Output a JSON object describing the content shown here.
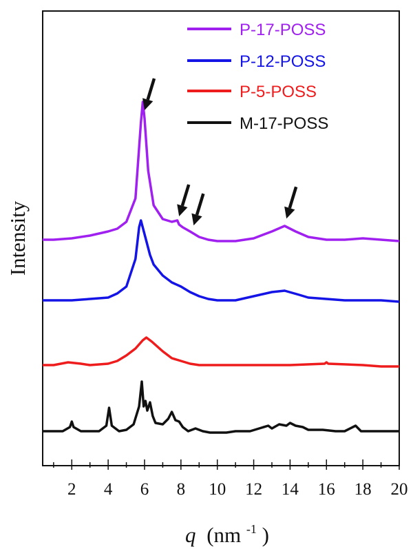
{
  "chart_data": {
    "type": "line",
    "title": "",
    "xlabel": "q",
    "xlabel_unit": "(nm",
    "xlabel_unit_exp": "-1",
    "xlabel_unit_close": ")",
    "ylabel": "Intensity",
    "xlim": [
      0.4,
      20
    ],
    "x_ticks": [
      "2",
      "4",
      "6",
      "8",
      "10",
      "12",
      "14",
      "16",
      "18",
      "20"
    ],
    "y_ticks_shown": false,
    "grid": false,
    "legend_position": "top-right",
    "series": [
      {
        "name": "P-17-POSS",
        "color": "#a020f0",
        "offset": 3,
        "points": [
          [
            0.4,
            0.0
          ],
          [
            1,
            0.0
          ],
          [
            2,
            0.01
          ],
          [
            3,
            0.03
          ],
          [
            4,
            0.06
          ],
          [
            4.5,
            0.08
          ],
          [
            5,
            0.13
          ],
          [
            5.5,
            0.3
          ],
          [
            5.8,
            0.85
          ],
          [
            5.9,
            1.0
          ],
          [
            6.0,
            0.88
          ],
          [
            6.2,
            0.5
          ],
          [
            6.5,
            0.25
          ],
          [
            7,
            0.15
          ],
          [
            7.5,
            0.13
          ],
          [
            7.8,
            0.14
          ],
          [
            7.9,
            0.11
          ],
          [
            8.1,
            0.09
          ],
          [
            8.5,
            0.06
          ],
          [
            9,
            0.02
          ],
          [
            9.5,
            0.0
          ],
          [
            10,
            -0.01
          ],
          [
            11,
            -0.01
          ],
          [
            12,
            0.01
          ],
          [
            13,
            0.06
          ],
          [
            13.7,
            0.1
          ],
          [
            14.3,
            0.06
          ],
          [
            15,
            0.02
          ],
          [
            16,
            0.0
          ],
          [
            17,
            0.0
          ],
          [
            18,
            0.01
          ],
          [
            19,
            0.0
          ],
          [
            20,
            -0.01
          ]
        ]
      },
      {
        "name": "P-12-POSS",
        "color": "#1414e6",
        "offset": 2,
        "points": [
          [
            0.4,
            0.0
          ],
          [
            1,
            0.0
          ],
          [
            2,
            0.0
          ],
          [
            3,
            0.01
          ],
          [
            4,
            0.02
          ],
          [
            4.5,
            0.05
          ],
          [
            5,
            0.1
          ],
          [
            5.5,
            0.3
          ],
          [
            5.7,
            0.53
          ],
          [
            5.8,
            0.58
          ],
          [
            6.0,
            0.48
          ],
          [
            6.3,
            0.33
          ],
          [
            6.5,
            0.26
          ],
          [
            7,
            0.18
          ],
          [
            7.5,
            0.13
          ],
          [
            8,
            0.1
          ],
          [
            8.5,
            0.06
          ],
          [
            9,
            0.03
          ],
          [
            9.5,
            0.01
          ],
          [
            10,
            0.0
          ],
          [
            11,
            0.0
          ],
          [
            12,
            0.03
          ],
          [
            13,
            0.06
          ],
          [
            13.7,
            0.07
          ],
          [
            14.5,
            0.04
          ],
          [
            15,
            0.02
          ],
          [
            16,
            0.01
          ],
          [
            17,
            0.0
          ],
          [
            18,
            0.0
          ],
          [
            19,
            0.0
          ],
          [
            20,
            -0.01
          ]
        ]
      },
      {
        "name": "P-5-POSS",
        "color": "#ee1c1c",
        "offset": 1,
        "points": [
          [
            0.4,
            0.0
          ],
          [
            1,
            0.0
          ],
          [
            1.8,
            0.02
          ],
          [
            2.5,
            0.01
          ],
          [
            3,
            0.0
          ],
          [
            4,
            0.01
          ],
          [
            4.5,
            0.03
          ],
          [
            5,
            0.07
          ],
          [
            5.5,
            0.12
          ],
          [
            5.9,
            0.18
          ],
          [
            6.1,
            0.2
          ],
          [
            6.4,
            0.17
          ],
          [
            7,
            0.1
          ],
          [
            7.5,
            0.05
          ],
          [
            8,
            0.03
          ],
          [
            8.5,
            0.01
          ],
          [
            9,
            0.0
          ],
          [
            10,
            0.0
          ],
          [
            12,
            0.0
          ],
          [
            14,
            0.0
          ],
          [
            15.9,
            0.01
          ],
          [
            16,
            0.02
          ],
          [
            16.1,
            0.01
          ],
          [
            18,
            0.0
          ],
          [
            19,
            -0.01
          ],
          [
            20,
            -0.01
          ]
        ]
      },
      {
        "name": "M-17-POSS",
        "color": "#111111",
        "offset": 0,
        "points": [
          [
            0.4,
            0.0
          ],
          [
            1.5,
            0.0
          ],
          [
            1.9,
            0.03
          ],
          [
            2.0,
            0.07
          ],
          [
            2.1,
            0.03
          ],
          [
            2.5,
            0.0
          ],
          [
            3.5,
            0.0
          ],
          [
            3.9,
            0.04
          ],
          [
            4.05,
            0.17
          ],
          [
            4.2,
            0.04
          ],
          [
            4.6,
            0.0
          ],
          [
            5.0,
            0.01
          ],
          [
            5.4,
            0.05
          ],
          [
            5.7,
            0.18
          ],
          [
            5.85,
            0.36
          ],
          [
            5.95,
            0.18
          ],
          [
            6.05,
            0.22
          ],
          [
            6.15,
            0.15
          ],
          [
            6.3,
            0.21
          ],
          [
            6.45,
            0.11
          ],
          [
            6.6,
            0.06
          ],
          [
            7.0,
            0.05
          ],
          [
            7.3,
            0.09
          ],
          [
            7.5,
            0.14
          ],
          [
            7.7,
            0.08
          ],
          [
            7.9,
            0.07
          ],
          [
            8.1,
            0.03
          ],
          [
            8.4,
            0.0
          ],
          [
            8.8,
            0.02
          ],
          [
            9.2,
            0.0
          ],
          [
            9.6,
            -0.01
          ],
          [
            10.5,
            -0.01
          ],
          [
            11,
            0.0
          ],
          [
            11.8,
            0.0
          ],
          [
            12.3,
            0.02
          ],
          [
            12.8,
            0.04
          ],
          [
            13.0,
            0.02
          ],
          [
            13.4,
            0.05
          ],
          [
            13.8,
            0.04
          ],
          [
            14.0,
            0.06
          ],
          [
            14.3,
            0.04
          ],
          [
            14.7,
            0.03
          ],
          [
            15.0,
            0.01
          ],
          [
            15.8,
            0.01
          ],
          [
            16.5,
            0.0
          ],
          [
            17.0,
            0.0
          ],
          [
            17.6,
            0.04
          ],
          [
            17.9,
            0.0
          ],
          [
            18.5,
            0.0
          ],
          [
            19,
            0.0
          ],
          [
            20,
            0.0
          ]
        ]
      }
    ],
    "annotations": [
      {
        "type": "arrow",
        "target_x": 6.0,
        "series": "P-17-POSS"
      },
      {
        "type": "arrow",
        "target_x": 7.9,
        "series": "P-17-POSS"
      },
      {
        "type": "arrow",
        "target_x": 8.7,
        "series": "P-17-POSS"
      },
      {
        "type": "arrow",
        "target_x": 13.8,
        "series": "P-17-POSS"
      }
    ]
  }
}
